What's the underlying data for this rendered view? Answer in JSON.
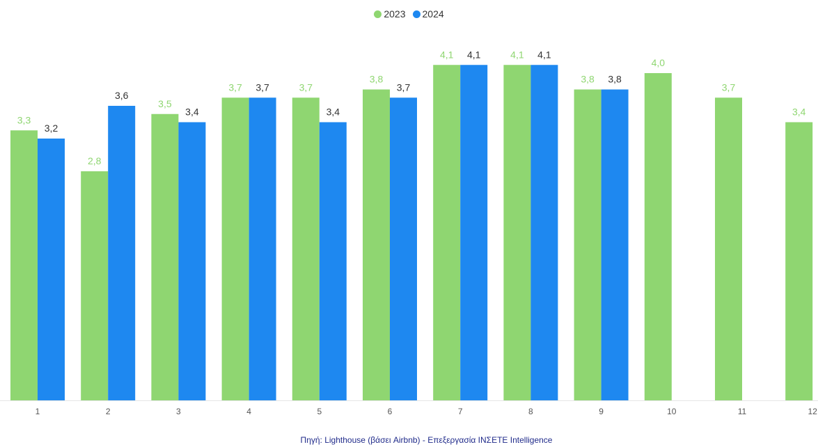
{
  "chart_data": {
    "type": "bar",
    "categories": [
      "1",
      "2",
      "3",
      "4",
      "5",
      "6",
      "7",
      "8",
      "9",
      "10",
      "11",
      "12"
    ],
    "series": [
      {
        "name": "2023",
        "color": "#8fd671",
        "label_color": "#8fd671",
        "values": [
          3.3,
          2.8,
          3.5,
          3.7,
          3.7,
          3.8,
          4.1,
          4.1,
          3.8,
          4.0,
          3.7,
          3.4
        ],
        "labels": [
          "3,3",
          "2,8",
          "3,5",
          "3,7",
          "3,7",
          "3,8",
          "4,1",
          "4,1",
          "3,8",
          "4,0",
          "3,7",
          "3,4"
        ]
      },
      {
        "name": "2024",
        "color": "#1e88f0",
        "label_color": "#333333",
        "values": [
          3.2,
          3.6,
          3.4,
          3.7,
          3.4,
          3.7,
          4.1,
          4.1,
          3.8,
          null,
          null,
          null
        ],
        "labels": [
          "3,2",
          "3,6",
          "3,4",
          "3,7",
          "3,4",
          "3,7",
          "4,1",
          "4,1",
          "3,8",
          "",
          "",
          ""
        ]
      }
    ],
    "ylim": [
      0,
      4.4
    ],
    "grid": false,
    "legend_position": "top-center",
    "title": "",
    "xlabel": "",
    "ylabel": ""
  },
  "footer": {
    "source": "Πηγή: Lighthouse (βάσει Airbnb) - Επεξεργασία INΣETE Intelligence"
  }
}
